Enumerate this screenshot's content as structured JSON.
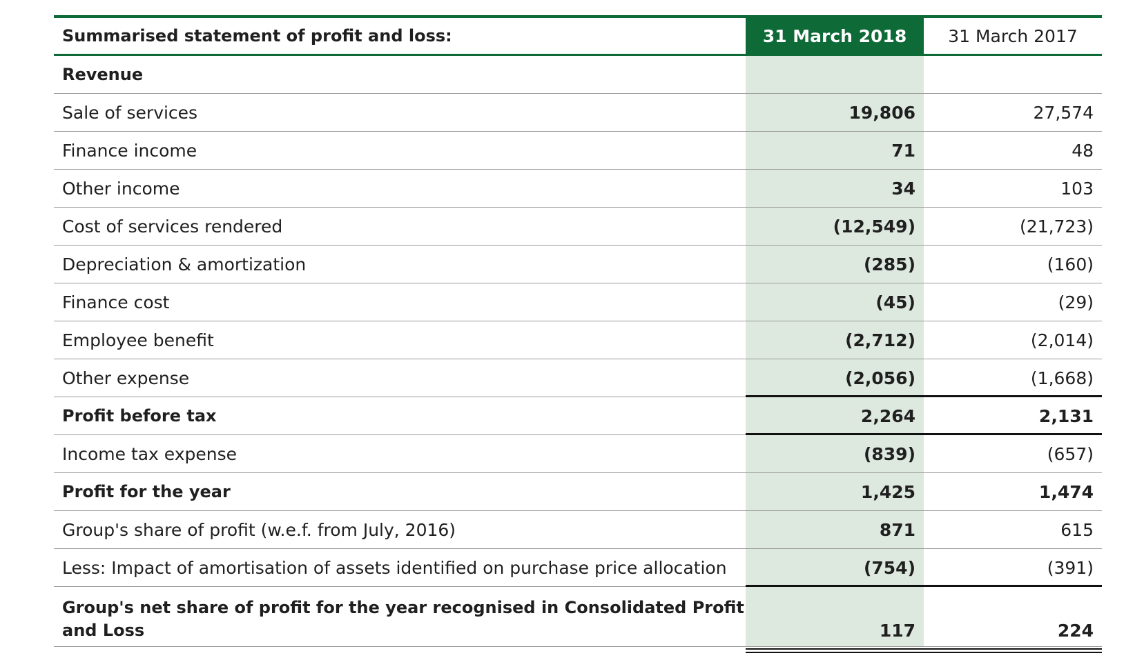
{
  "header": {
    "title": "Summarised statement of profit and loss:",
    "col_current": "31 March 2018",
    "col_prior": "31 March 2017"
  },
  "section_revenue": "Revenue",
  "rows": [
    {
      "label": "Sale of services",
      "y2018": "19,806",
      "y2017": "27,574"
    },
    {
      "label": "Finance income",
      "y2018": "71",
      "y2017": "48"
    },
    {
      "label": "Other income",
      "y2018": "34",
      "y2017": "103"
    },
    {
      "label": "Cost of services rendered",
      "y2018": "(12,549)",
      "y2017": "(21,723)"
    },
    {
      "label": "Depreciation & amortization",
      "y2018": "(285)",
      "y2017": "(160)"
    },
    {
      "label": "Finance cost",
      "y2018": "(45)",
      "y2017": "(29)"
    },
    {
      "label": "Employee benefit",
      "y2018": "(2,712)",
      "y2017": "(2,014)"
    },
    {
      "label": "Other expense",
      "y2018": "(2,056)",
      "y2017": "(1,668)"
    },
    {
      "label": "Profit before tax",
      "y2018": "2,264",
      "y2017": "2,131"
    },
    {
      "label": "Income tax expense",
      "y2018": "(839)",
      "y2017": "(657)"
    },
    {
      "label": "Profit for the year",
      "y2018": "1,425",
      "y2017": "1,474"
    },
    {
      "label": "Group's share of profit (w.e.f. from July, 2016)",
      "y2018": "871",
      "y2017": "615"
    },
    {
      "label": "Less: Impact of amortisation of assets identified on purchase price allocation",
      "y2018": "(754)",
      "y2017": "(391)"
    },
    {
      "label": "Group's net share of profit for the year recognised in Consolidated Profit and Loss",
      "y2018": "117",
      "y2017": "224"
    }
  ]
}
